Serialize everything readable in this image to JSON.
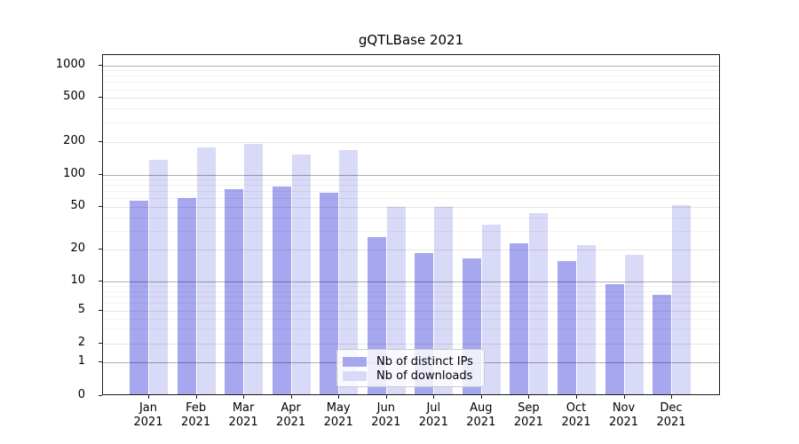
{
  "title": "gQTLBase 2021",
  "chart_data": {
    "type": "bar",
    "title": "gQTLBase 2021",
    "categories": [
      "Jan 2021",
      "Feb 2021",
      "Mar 2021",
      "Apr 2021",
      "May 2021",
      "Jun 2021",
      "Jul 2021",
      "Aug 2021",
      "Sep 2021",
      "Oct 2021",
      "Nov 2021",
      "Dec 2021"
    ],
    "series": [
      {
        "name": "Nb of distinct IPs",
        "color": "#a7a7f0",
        "values": [
          55,
          58,
          71,
          75,
          65,
          25,
          18,
          16,
          22,
          15,
          9,
          7
        ]
      },
      {
        "name": "Nb of downloads",
        "color": "#d9d9f8",
        "values": [
          132,
          172,
          184,
          147,
          162,
          48,
          48,
          33,
          42,
          21,
          17,
          50
        ]
      }
    ],
    "xlabel": "",
    "ylabel": "",
    "yscale": "symlog",
    "y_ticks": [
      1000,
      500,
      200,
      100,
      50,
      20,
      10,
      5,
      2,
      1,
      0
    ],
    "ylim": [
      0,
      1270
    ],
    "grid": true,
    "legend_position": "lower center"
  }
}
